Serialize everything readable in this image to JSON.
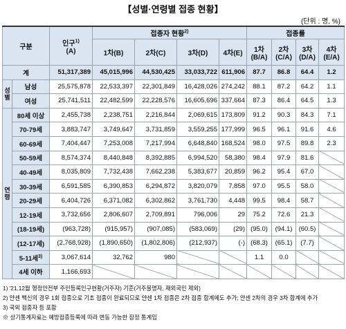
{
  "header": {
    "title": "【성별·연령별 접종 현황】",
    "unit": "(단위 : 명, %)"
  },
  "table": {
    "columns": {
      "category": "구분",
      "population": {
        "label": "인구",
        "note": "1)",
        "sub": "(A)"
      },
      "vaccinated": {
        "label": "접종자 현황",
        "note": "2)"
      },
      "rate": "접종률",
      "counts": [
        "1차(B)",
        "2차(C)",
        "3차(D)",
        "4차(E)"
      ],
      "rates": [
        "1차 (B/A)",
        "2차 (C/A)",
        "3차 (D/A)",
        "4차 (E/A)"
      ]
    },
    "total": {
      "label": "계",
      "cells": [
        "51,317,389",
        "45,015,996",
        "44,530,425",
        "33,033,722",
        "611,906",
        "87.7",
        "86.8",
        "64.4",
        "1.2"
      ]
    },
    "groups": [
      {
        "label": "성별",
        "rows": [
          {
            "label": "남성",
            "cells": [
              "25,575,878",
              "22,533,397",
              "22,301,849",
              "16,428,026",
              "274,242",
              "88.1",
              "87.2",
              "64.2",
              "1.1"
            ]
          },
          {
            "label": "여성",
            "cells": [
              "25,741,511",
              "22,482,599",
              "22,228,576",
              "16,605,696",
              "337,664",
              "87.3",
              "86.4",
              "64.5",
              "1.3"
            ]
          }
        ]
      },
      {
        "label": "연령",
        "rows": [
          {
            "label": "80세 이상",
            "cells": [
              "2,455,738",
              "2,238,751",
              "2,216,844",
              "2,069,615",
              "173,809",
              "91.2",
              "90.3",
              "84.3",
              "7.1"
            ]
          },
          {
            "label": "70-79세",
            "cells": [
              "3,883,747",
              "3,749,647",
              "3,731,859",
              "3,559,255",
              "177,999",
              "96.5",
              "96.1",
              "91.6",
              "4.6"
            ]
          },
          {
            "label": "60-69세",
            "cells": [
              "7,404,447",
              "7,253,008",
              "7,217,994",
              "6,648,840",
              "168,524",
              "98.0",
              "97.5",
              "89.8",
              "2.3"
            ]
          },
          {
            "label": "50-59세",
            "cells": [
              "8,574,374",
              "8,440,848",
              "8,392,885",
              "6,994,520",
              "58,380",
              "98.4",
              "97.9",
              "81.6",
              null
            ]
          },
          {
            "label": "40-49세",
            "cells": [
              "8,035,809",
              "7,732,438",
              "7,662,238",
              "5,383,677",
              "20,859",
              "96.2",
              "95.4",
              "67.0",
              null
            ]
          },
          {
            "label": "30-39세",
            "cells": [
              "6,591,585",
              "6,390,853",
              "6,294,872",
              "3,820,079",
              "7,858",
              "97.0",
              "95.5",
              "58.0",
              null
            ]
          },
          {
            "label": "20-29세",
            "cells": [
              "6,404,726",
              "6,371,082",
              "6,302,862",
              "3,761,730",
              "4,448",
              "99.5",
              "98.4",
              "58.7",
              null
            ]
          },
          {
            "label": "12-19세",
            "cells": [
              "3,732,656",
              "2,806,607",
              "2,709,891",
              "796,006",
              "29",
              "75.2",
              "72.6",
              "21.3",
              null
            ]
          },
          {
            "label": "(18-19세)",
            "cells": [
              "(963,728)",
              "(915,957)",
              "(907,085)",
              "(583,069)",
              "(29)",
              "(95.0)",
              "(94.1)",
              "(60.5)",
              null
            ]
          },
          {
            "label": "(12-17세)",
            "cells": [
              "(2,768,928)",
              "(1,890,650)",
              "(1,802,806)",
              "(212,937)",
              "(-)",
              "(68.3)",
              "(65.1)",
              "(7.7)",
              null
            ]
          },
          {
            "label": "5-11세",
            "note": "3)",
            "cells": [
              "3,067,614",
              "32,762",
              "980",
              null,
              null,
              "1.1",
              "0.0",
              null,
              null
            ]
          },
          {
            "label": "4세 이하",
            "cells": [
              "1,166,693",
              null,
              null,
              null,
              null,
              null,
              null,
              null,
              null
            ]
          }
        ]
      }
    ]
  },
  "footnotes": [
    "1) '21.12월 행정안전부 주민등록인구현황(거주자) 기준(거주불명자, 재외국민 제외)",
    "2) 얀센 백신의 경우 1회 접종으로 기초 접종이 완료되므로 얀센 1차 접종은 2차 접종 합계에도 추가; 얀센 2차의 경우 3차 합계에 추가",
    "3) 국외 접종자 등 포함",
    "※ 상기통계자료는 예방접종등록에 따라 변동 가능한 잠정 통계임"
  ]
}
